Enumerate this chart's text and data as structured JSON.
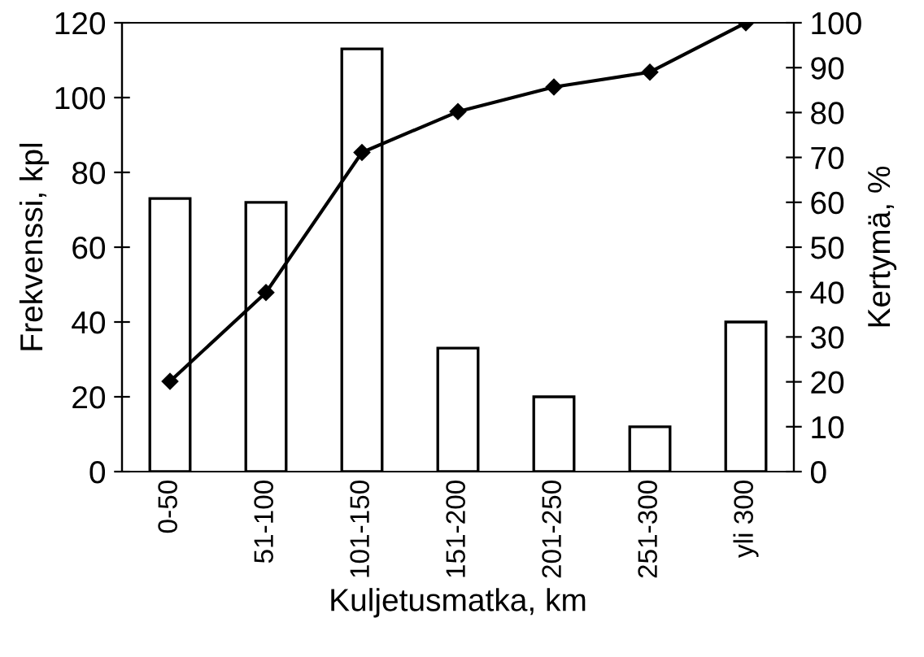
{
  "chart_data": {
    "type": "bar",
    "xlabel": "Kuljetusmatka, km",
    "ylabel": "Frekvenssi, kpl",
    "y2label": "Kertymä, %",
    "categories": [
      "0-50",
      "51-100",
      "101-150",
      "151-200",
      "201-250",
      "251-300",
      "yli 300"
    ],
    "series": [
      {
        "color": "#ffffff",
        "values": [
          73,
          72,
          113,
          33,
          20,
          12,
          40
        ]
      },
      {
        "type": "line",
        "axis": "y2",
        "color": "#000000",
        "marker": "diamond",
        "values": [
          20.1,
          39.9,
          71.1,
          80.2,
          85.7,
          89,
          100
        ]
      }
    ],
    "ylim": [
      0,
      120
    ],
    "yticks": [
      0,
      20,
      40,
      60,
      80,
      100,
      120
    ],
    "y2lim": [
      0,
      100
    ],
    "y2ticks": [
      0,
      10,
      20,
      30,
      40,
      50,
      60,
      70,
      80,
      90,
      100
    ],
    "grid": false,
    "legend": false
  }
}
